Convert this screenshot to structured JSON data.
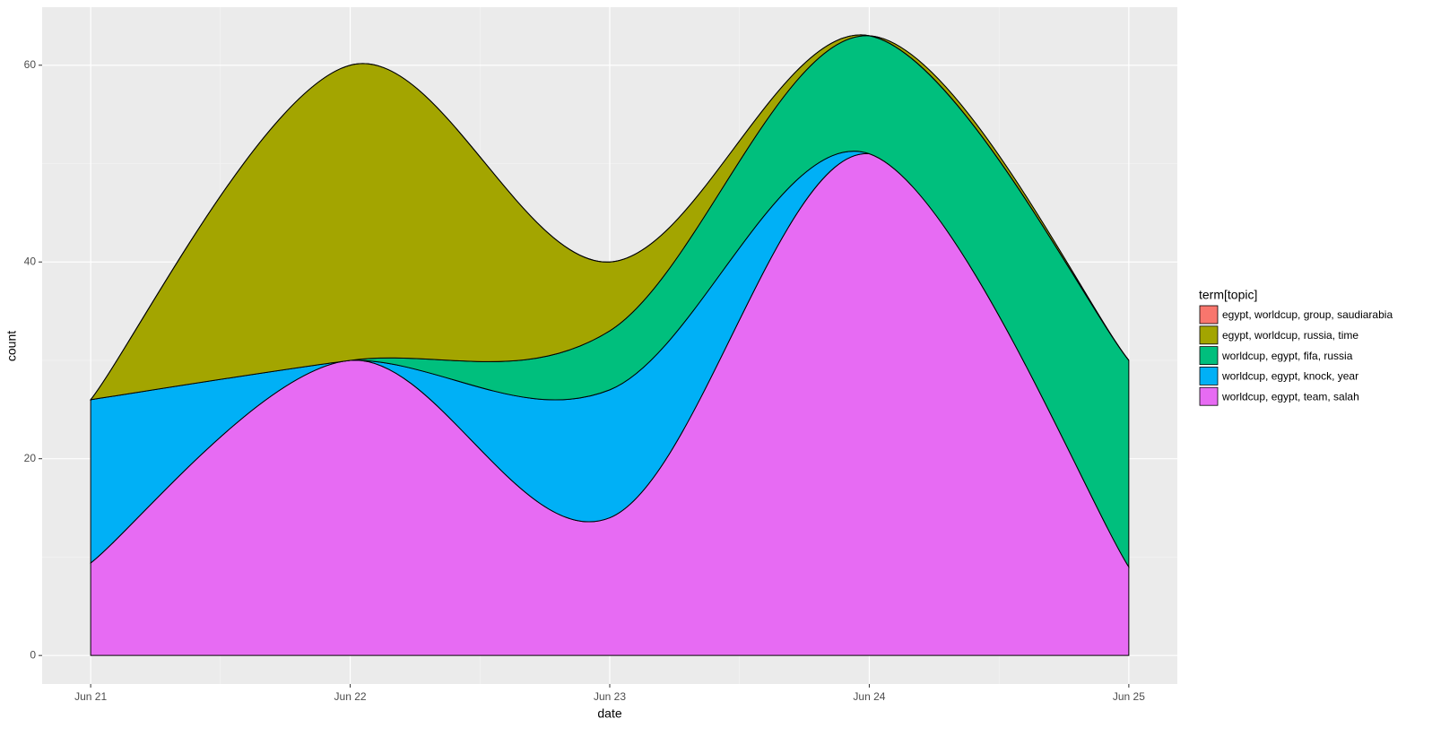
{
  "chart_data": {
    "type": "area",
    "stacked": true,
    "x_label": "date",
    "y_label": "count",
    "x": [
      "Jun 21",
      "Jun 22",
      "Jun 23",
      "Jun 24",
      "Jun 25"
    ],
    "ylim": [
      -2.9,
      65.9
    ],
    "yticks": [
      0,
      20,
      40,
      60
    ],
    "grid": true,
    "legend_title": "term[topic]",
    "legend": "right",
    "series": [
      {
        "name": "egypt, worldcup, group, saudiarabia",
        "color": "#f8766d",
        "values": [
          0,
          0,
          0,
          0,
          0
        ]
      },
      {
        "name": "egypt, worldcup, russia, time",
        "color": "#a3a500",
        "values": [
          0,
          30,
          7,
          0,
          0
        ]
      },
      {
        "name": "worldcup, egypt, fifa, russia",
        "color": "#00bf7d",
        "values": [
          0,
          0,
          6,
          12,
          21
        ]
      },
      {
        "name": "worldcup, egypt, knock, year",
        "color": "#00b0f6",
        "values": [
          16.6,
          0,
          13,
          0,
          0
        ]
      },
      {
        "name": "worldcup, egypt, team, salah",
        "color": "#e76bf3",
        "values": [
          9.4,
          30,
          14,
          51,
          9
        ]
      }
    ]
  }
}
